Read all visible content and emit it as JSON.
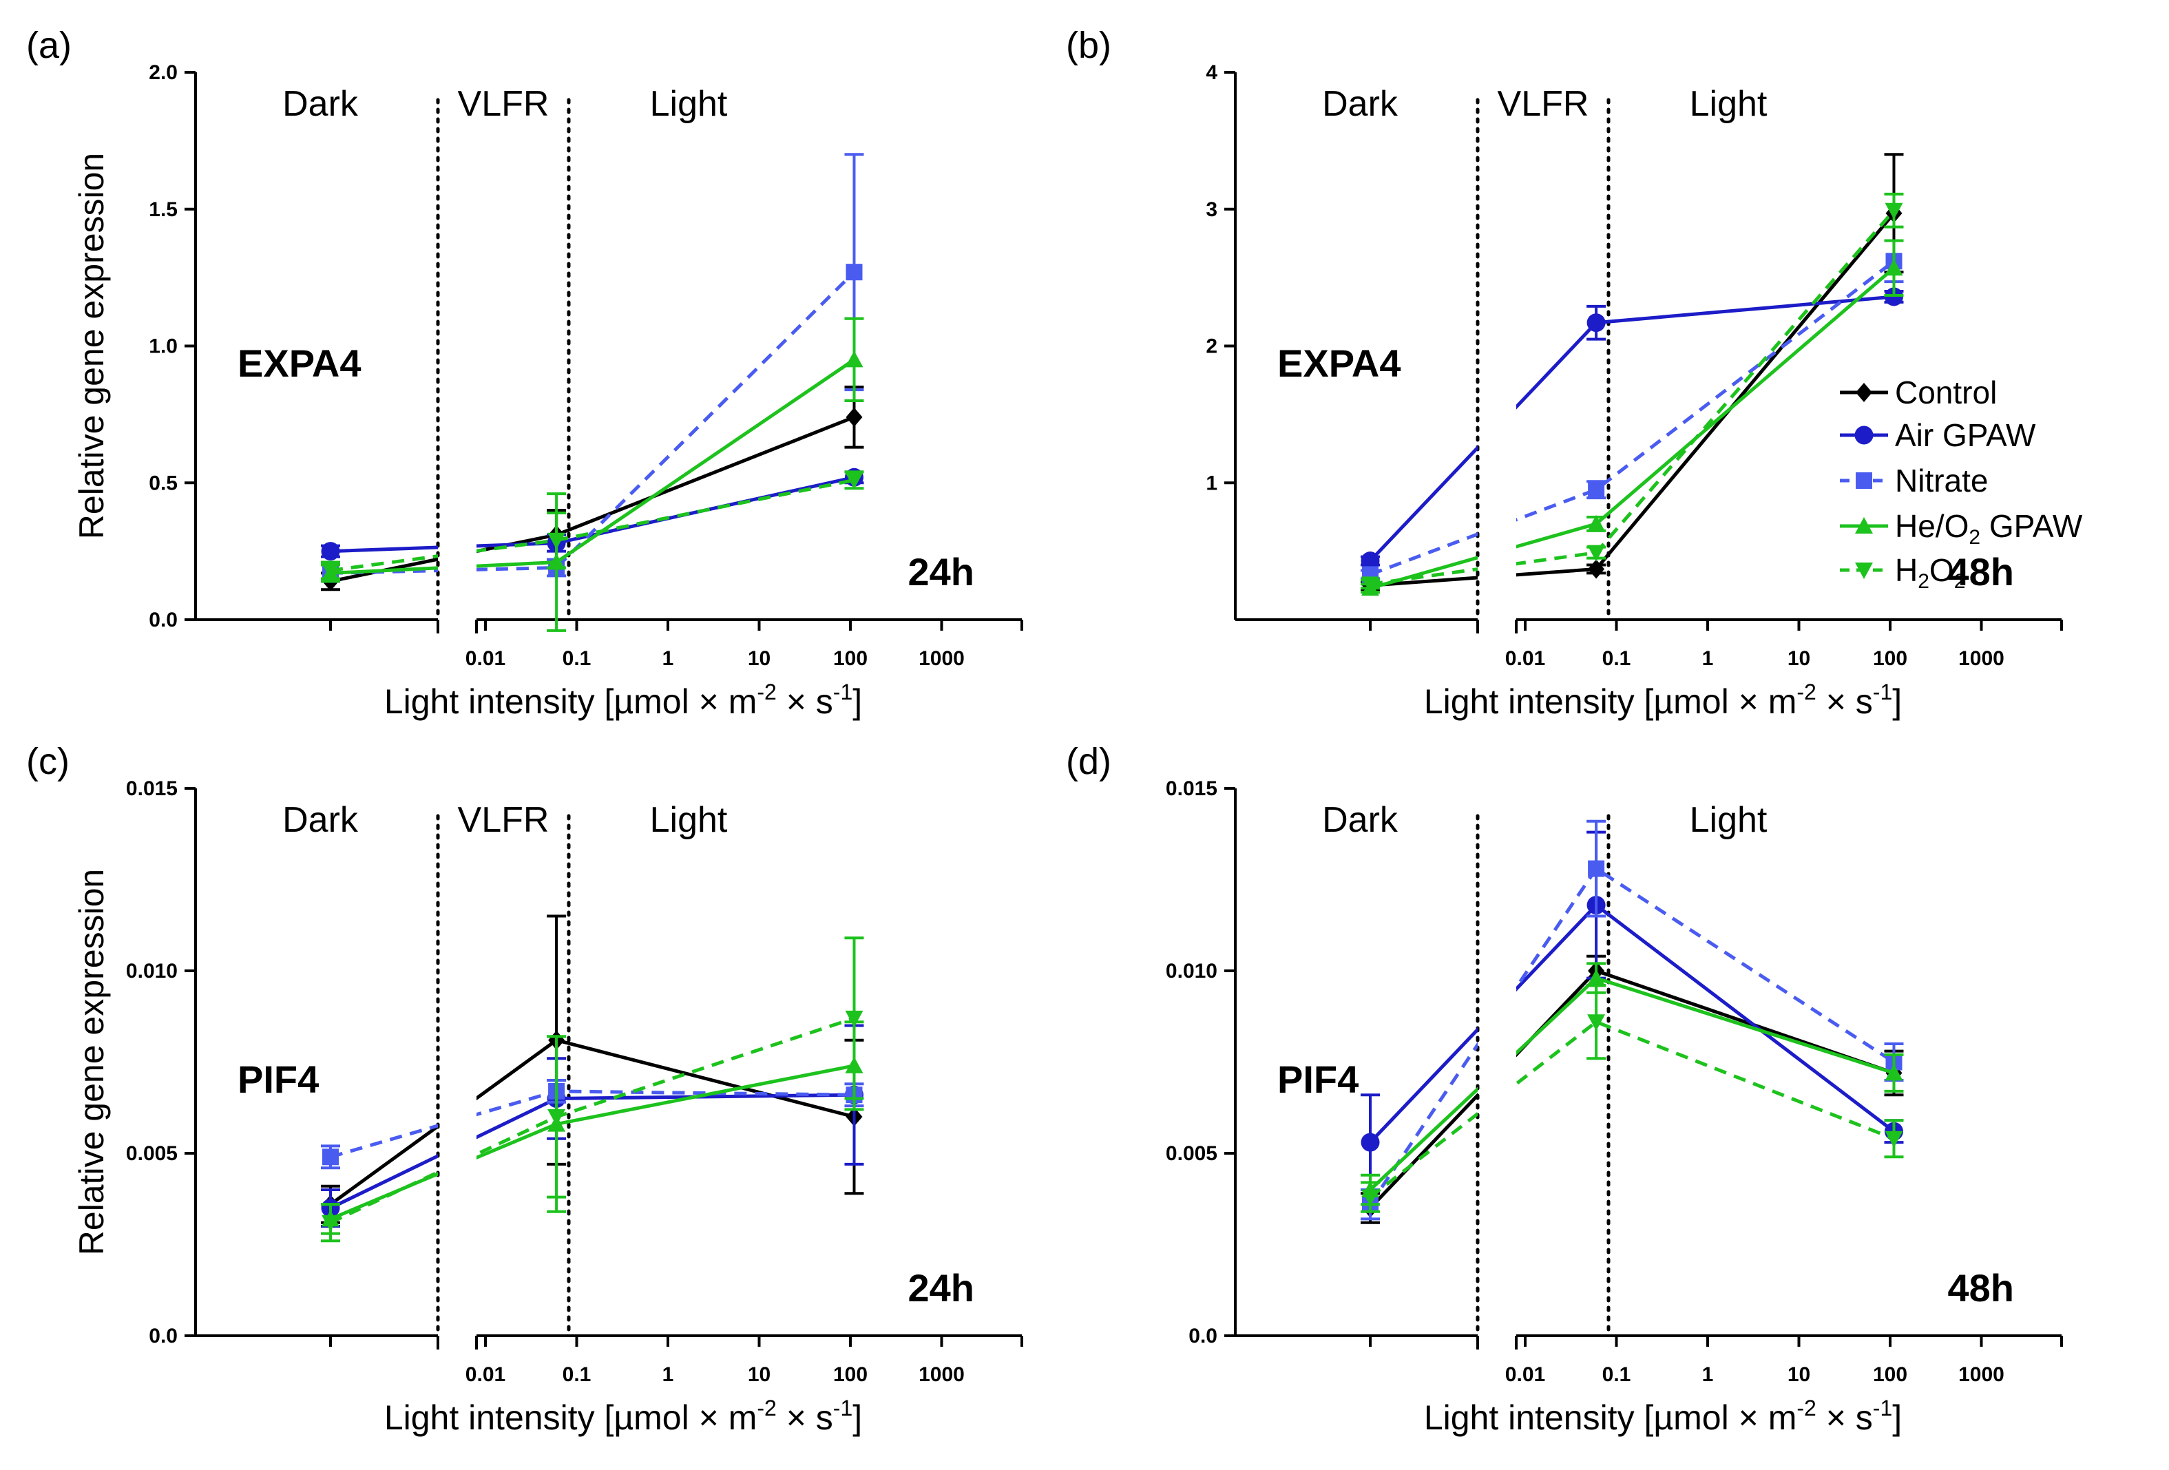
{
  "figure": {
    "legend": [
      {
        "key": "control",
        "label": "Control"
      },
      {
        "key": "air",
        "label": "Air GPAW"
      },
      {
        "key": "nitrate",
        "label": "Nitrate"
      },
      {
        "key": "he",
        "label_main": "He/O",
        "label_sub": "2",
        "label_tail": " GPAW"
      },
      {
        "key": "h2o2",
        "label_main": "H",
        "label_sub": "2",
        "label_mid": "O",
        "label_sub2": "2"
      }
    ],
    "colors": {
      "control": "#000000",
      "air": "#1c1cc8",
      "nitrate": "#4a5cf0",
      "he": "#1dc21d",
      "h2o2": "#1dc21d",
      "divider": "#000000"
    },
    "markers": {
      "control": "diamond",
      "air": "circle",
      "nitrate": "square",
      "he": "triangle-up",
      "h2o2": "triangle-down"
    },
    "dashed": {
      "control": false,
      "air": false,
      "nitrate": true,
      "he": false,
      "h2o2": true
    }
  },
  "chart_data": [
    {
      "panel_label": "(a)",
      "type": "line",
      "gene": "EXPA4",
      "time": "24h",
      "ylabel": "Relative gene expression",
      "xlabel_main": "Light intensity [µmol × m",
      "xlabel_sup1": "-2",
      "xlabel_mid": " × s",
      "xlabel_sup2": "-1",
      "xlabel_end": "]",
      "ylim": [
        0,
        2.0
      ],
      "yticks": [
        0.0,
        0.5,
        1.0,
        1.5,
        2.0
      ],
      "ytick_labels": [
        "0.0",
        "0.5",
        "1.0",
        "1.5",
        "2.0"
      ],
      "xticks": [
        0.01,
        0.1,
        1,
        10,
        100,
        1000
      ],
      "xtick_labels": [
        "0.01",
        "0.1",
        "1",
        "10",
        "100",
        "1000"
      ],
      "regions": [
        "Dark",
        "VLFR",
        "Light"
      ],
      "x_points": [
        "Dark",
        0.06,
        110
      ],
      "series": [
        {
          "key": "control",
          "values": [
            0.14,
            0.31,
            0.74
          ],
          "errors": [
            0.03,
            0.09,
            0.11
          ]
        },
        {
          "key": "air",
          "values": [
            0.25,
            0.28,
            0.52
          ],
          "errors": [
            0.02,
            0.03,
            0.02
          ]
        },
        {
          "key": "nitrate",
          "values": [
            0.17,
            0.19,
            1.27
          ],
          "errors": [
            0.03,
            0.03,
            0.43
          ]
        },
        {
          "key": "he",
          "values": [
            0.17,
            0.21,
            0.95
          ],
          "errors": [
            0.03,
            0.25,
            0.15
          ]
        },
        {
          "key": "h2o2",
          "values": [
            0.18,
            0.29,
            0.51
          ],
          "errors": [
            0.03,
            0.1,
            0.03
          ]
        }
      ]
    },
    {
      "panel_label": "(b)",
      "type": "line",
      "gene": "EXPA4",
      "time": "48h",
      "ylabel": "",
      "xlabel_main": "Light intensity [µmol × m",
      "xlabel_sup1": "-2",
      "xlabel_mid": " × s",
      "xlabel_sup2": "-1",
      "xlabel_end": "]",
      "ylim": [
        0,
        4
      ],
      "yticks": [
        1,
        2,
        3,
        4
      ],
      "ytick_labels": [
        "1",
        "2",
        "3",
        "4"
      ],
      "xticks": [
        0.01,
        0.1,
        1,
        10,
        100,
        1000
      ],
      "xtick_labels": [
        "0.01",
        "0.1",
        "1",
        "10",
        "100",
        "1000"
      ],
      "regions": [
        "Dark",
        "VLFR",
        "Light"
      ],
      "x_points": [
        "Dark",
        0.06,
        110
      ],
      "series": [
        {
          "key": "control",
          "values": [
            0.25,
            0.37,
            2.97
          ],
          "errors": [
            0.03,
            0.03,
            0.43
          ]
        },
        {
          "key": "air",
          "values": [
            0.43,
            2.17,
            2.36
          ],
          "errors": [
            0.03,
            0.12,
            0.04
          ]
        },
        {
          "key": "nitrate",
          "values": [
            0.33,
            0.95,
            2.62
          ],
          "errors": [
            0.03,
            0.06,
            0.15
          ]
        },
        {
          "key": "he",
          "values": [
            0.23,
            0.7,
            2.57
          ],
          "errors": [
            0.03,
            0.05,
            0.2
          ]
        },
        {
          "key": "h2o2",
          "values": [
            0.26,
            0.49,
            2.99
          ],
          "errors": [
            0.03,
            0.04,
            0.12
          ]
        }
      ]
    },
    {
      "panel_label": "(c)",
      "type": "line",
      "gene": "PIF4",
      "time": "24h",
      "ylabel": "Relative gene expression",
      "xlabel_main": "Light intensity [µmol × m",
      "xlabel_sup1": "-2",
      "xlabel_mid": " × s",
      "xlabel_sup2": "-1",
      "xlabel_end": "]",
      "ylim": [
        0,
        0.015
      ],
      "yticks": [
        0.0,
        0.005,
        0.01,
        0.015
      ],
      "ytick_labels": [
        "0.0",
        "0.005",
        "0.010",
        "0.015"
      ],
      "xticks": [
        0.01,
        0.1,
        1,
        10,
        100,
        1000
      ],
      "xtick_labels": [
        "0.01",
        "0.1",
        "1",
        "10",
        "100",
        "1000"
      ],
      "regions": [
        "Dark",
        "VLFR",
        "Light"
      ],
      "x_points": [
        "Dark",
        0.06,
        110
      ],
      "series": [
        {
          "key": "control",
          "values": [
            0.0036,
            0.0081,
            0.006
          ],
          "errors": [
            0.0005,
            0.0034,
            0.0021
          ]
        },
        {
          "key": "air",
          "values": [
            0.0035,
            0.0065,
            0.0066
          ],
          "errors": [
            0.0005,
            0.0011,
            0.0019
          ]
        },
        {
          "key": "nitrate",
          "values": [
            0.0049,
            0.0067,
            0.0066
          ],
          "errors": [
            0.0003,
            0.0003,
            0.0003
          ]
        },
        {
          "key": "he",
          "values": [
            0.0032,
            0.0058,
            0.0074
          ],
          "errors": [
            0.0004,
            0.0024,
            0.0012
          ]
        },
        {
          "key": "h2o2",
          "values": [
            0.0031,
            0.006,
            0.0087
          ],
          "errors": [
            0.0005,
            0.0022,
            0.0022
          ]
        }
      ]
    },
    {
      "panel_label": "(d)",
      "type": "line",
      "gene": "PIF4",
      "time": "48h",
      "ylabel": "",
      "xlabel_main": "Light intensity [µmol × m",
      "xlabel_sup1": "-2",
      "xlabel_mid": " × s",
      "xlabel_sup2": "-1",
      "xlabel_end": "]",
      "ylim": [
        0,
        0.015
      ],
      "yticks": [
        0.0,
        0.005,
        0.01,
        0.015
      ],
      "ytick_labels": [
        "0.0",
        "0.005",
        "0.010",
        "0.015"
      ],
      "xticks": [
        0.01,
        0.1,
        1,
        10,
        100,
        1000
      ],
      "xtick_labels": [
        "0.01",
        "0.1",
        "1",
        "10",
        "100",
        "1000"
      ],
      "regions": [
        "Dark",
        "",
        "Light"
      ],
      "x_points": [
        "Dark",
        0.06,
        110
      ],
      "series": [
        {
          "key": "control",
          "values": [
            0.0035,
            0.01,
            0.0072
          ],
          "errors": [
            0.0004,
            0.0004,
            0.0006
          ]
        },
        {
          "key": "air",
          "values": [
            0.0053,
            0.0118,
            0.0056
          ],
          "errors": [
            0.0013,
            0.002,
            0.0003
          ]
        },
        {
          "key": "nitrate",
          "values": [
            0.0036,
            0.0128,
            0.0075
          ],
          "errors": [
            0.0004,
            0.0013,
            0.0005
          ]
        },
        {
          "key": "he",
          "values": [
            0.004,
            0.0098,
            0.0072
          ],
          "errors": [
            0.0004,
            0.0004,
            0.0005
          ]
        },
        {
          "key": "h2o2",
          "values": [
            0.0038,
            0.0086,
            0.0054
          ],
          "errors": [
            0.0004,
            0.001,
            0.0005
          ]
        }
      ]
    }
  ]
}
